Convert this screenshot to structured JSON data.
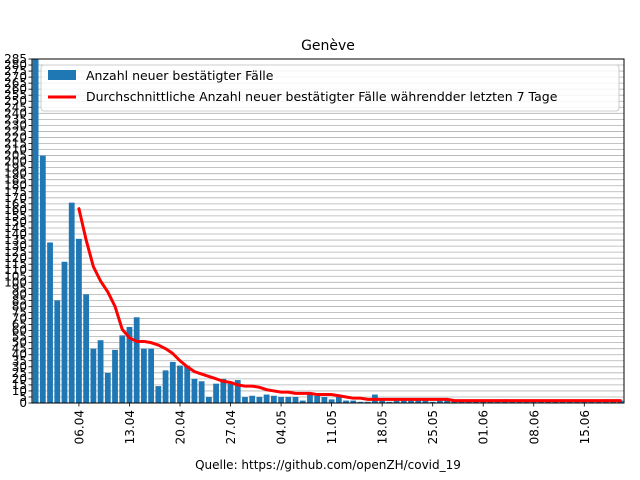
{
  "chart_data": {
    "type": "bar",
    "title": "Genève",
    "xlabel": "Quelle: https://github.com/openZH/covid_19",
    "ylabel": "",
    "ylim": [
      0,
      285
    ],
    "ytick_step": 5,
    "grid": "horizontal",
    "legend_position": "top-right",
    "x_start_date": "2020-03-31",
    "date_ticks": [
      "06.04",
      "13.04",
      "20.04",
      "27.04",
      "04.05",
      "11.05",
      "18.05",
      "25.05",
      "01.06",
      "08.06",
      "15.06"
    ],
    "series": [
      {
        "name": "Anzahl neuer bestätigter Fälle",
        "type": "bar",
        "color": "#1f77b4",
        "values": [
          285,
          205,
          133,
          85,
          117,
          166,
          136,
          90,
          45,
          52,
          25,
          44,
          56,
          63,
          71,
          45,
          45,
          14,
          27,
          34,
          31,
          31,
          20,
          18,
          5,
          16,
          20,
          16,
          19,
          5,
          6,
          5,
          7,
          6,
          5,
          5,
          5,
          2,
          7,
          6,
          5,
          3,
          5,
          2,
          2,
          1,
          1,
          7,
          2,
          1,
          2,
          2,
          2,
          4,
          2,
          1,
          2,
          2,
          2,
          1,
          1,
          2,
          2,
          2,
          2,
          3,
          2,
          1,
          2,
          1,
          1,
          1,
          1,
          1,
          1,
          2,
          1,
          1,
          2,
          3,
          1,
          2
        ]
      },
      {
        "name": "Durchschnittliche Anzahl neuer bestätigter Fälle währendder letzten 7 Tage",
        "type": "line",
        "color": "#ff0000",
        "start_index": 6,
        "values": [
          161,
          135,
          113,
          101,
          92,
          80,
          61,
          54,
          51,
          51,
          50,
          48,
          45,
          41,
          35,
          30,
          26,
          24,
          22,
          20,
          18,
          17,
          15,
          14,
          14,
          13,
          11,
          10,
          9,
          9,
          8,
          8,
          8,
          7,
          7,
          7,
          6,
          5,
          4,
          4,
          3,
          3,
          3,
          3,
          3,
          3,
          3,
          3,
          3,
          3,
          3,
          3,
          2,
          2,
          2,
          2,
          2,
          2,
          2,
          2,
          2,
          2,
          2,
          2,
          2,
          2,
          2,
          2,
          2,
          2,
          2,
          2,
          2,
          2,
          2,
          2
        ]
      }
    ]
  }
}
